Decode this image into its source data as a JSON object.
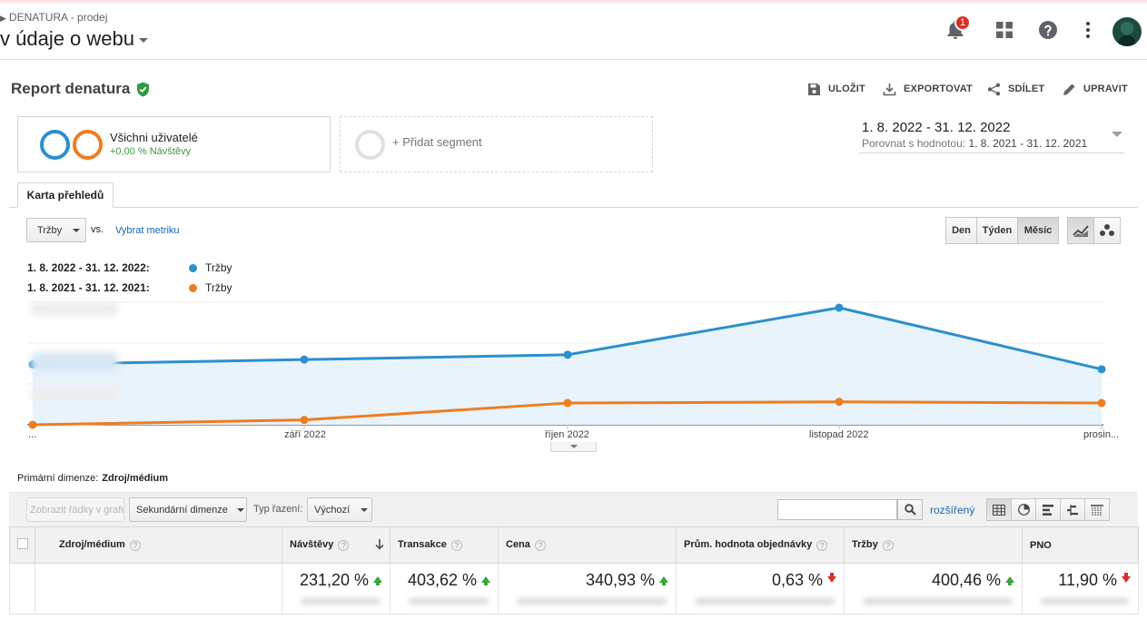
{
  "app": {
    "account_breadcrumb": "DENATURA - prodej",
    "view_title": "v údaje o webu",
    "notification_count": "1"
  },
  "report": {
    "title": "Report denatura",
    "actions": {
      "save": "ULOŽIT",
      "export": "EXPORTOVAT",
      "share": "SDÍLET",
      "edit": "UPRAVIT"
    }
  },
  "segments": {
    "active_name": "Všichni uživatelé",
    "active_sub": "+0,00 % Návštěvy",
    "add_label": "+ Přidat segment"
  },
  "date_range": {
    "primary": "1. 8. 2022 - 31. 12. 2022",
    "compare_label": "Porovnat s hodnotou:",
    "compare_value": "1. 8. 2021 - 31. 12. 2021"
  },
  "tabs": [
    "Karta přehledů"
  ],
  "chart_controls": {
    "metric": "Tržby",
    "vs": "vs.",
    "select_metric": "Vybrat metriku",
    "granularity": [
      "Den",
      "Týden",
      "Měsíc"
    ],
    "granularity_selected": "Měsíc"
  },
  "legend": [
    {
      "period": "1. 8. 2022 - 31. 12. 2022:",
      "name": "Tržby",
      "color": "#2d8fcd"
    },
    {
      "period": "1. 8. 2021 - 31. 12. 2021:",
      "name": "Tržby",
      "color": "#ee7d21"
    }
  ],
  "chart_data": {
    "type": "line",
    "categories": [
      "...",
      "září 2022",
      "říjen 2022",
      "listopad 2022",
      "prosin..."
    ],
    "y_axis_labels_hidden": true,
    "series": [
      {
        "name": "Tržby",
        "period": "1. 8. 2022 - 31. 12. 2022",
        "values": [
          0.5,
          0.54,
          0.58,
          0.97,
          0.46
        ]
      },
      {
        "name": "Tržby",
        "period": "1. 8. 2021 - 31. 12. 2021",
        "values": [
          0.0,
          0.04,
          0.18,
          0.19,
          0.18
        ]
      }
    ],
    "ylim": [
      0,
      1
    ],
    "grid": true,
    "area_fill_primary": true
  },
  "table": {
    "primary_dimension_label": "Primární dimenze:",
    "primary_dimension_value": "Zdroj/médium",
    "toolbar": {
      "plot_rows": "Zobrazit řádky v grafu",
      "secondary_dimension": "Sekundární dimenze",
      "sort_type_label": "Typ řazení:",
      "sort_type_value": "Výchozí",
      "search_placeholder": "",
      "advanced": "rozšířený"
    },
    "columns": [
      "Zdroj/médium",
      "Návštěvy",
      "Transakce",
      "Cena",
      "Prům. hodnota objednávky",
      "Tržby",
      "PNO"
    ],
    "summary_row": [
      {
        "value": "231,20 %",
        "trend": "up"
      },
      {
        "value": "403,62 %",
        "trend": "up"
      },
      {
        "value": "340,93 %",
        "trend": "up"
      },
      {
        "value": "0,63 %",
        "trend": "down"
      },
      {
        "value": "400,46 %",
        "trend": "up"
      },
      {
        "value": "11,90 %",
        "trend": "down"
      }
    ]
  },
  "colors": {
    "series_current": "#2d8fcd",
    "series_previous": "#ee7d21",
    "trend_up": "#3aa53a",
    "trend_down": "#d93025",
    "link": "#1a66b0"
  }
}
